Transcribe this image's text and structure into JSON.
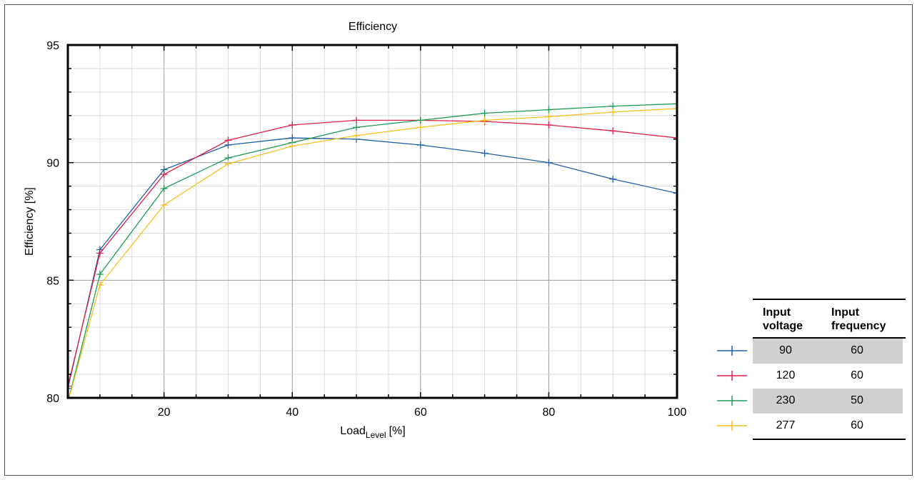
{
  "chart_data": {
    "type": "line",
    "title": "Efficiency",
    "xlabel_main": "Load",
    "xlabel_sub": "Level",
    "xlabel_unit": "[%]",
    "ylabel": "Efficiency [%]",
    "xlim": [
      5,
      100
    ],
    "ylim": [
      80,
      95
    ],
    "x_ticks": [
      20,
      40,
      60,
      80,
      100
    ],
    "y_ticks": [
      80,
      85,
      90,
      95
    ],
    "x": [
      5,
      10,
      20,
      30,
      40,
      50,
      60,
      70,
      80,
      90,
      100
    ],
    "series": [
      {
        "name": "90 / 60",
        "color": "#1f5fa8",
        "values": [
          80.4,
          86.3,
          89.7,
          90.75,
          91.05,
          91.0,
          90.75,
          90.4,
          90.0,
          89.3,
          88.7
        ]
      },
      {
        "name": "120 / 60",
        "color": "#e0204a",
        "values": [
          80.5,
          86.15,
          89.5,
          90.95,
          91.6,
          91.8,
          91.8,
          91.75,
          91.6,
          91.35,
          91.05
        ]
      },
      {
        "name": "230 / 50",
        "color": "#1e9a55",
        "values": [
          79.8,
          85.25,
          88.9,
          90.2,
          90.85,
          91.5,
          91.8,
          92.1,
          92.25,
          92.4,
          92.5
        ]
      },
      {
        "name": "277 / 60",
        "color": "#f5c020",
        "values": [
          79.8,
          84.8,
          88.2,
          89.95,
          90.7,
          91.15,
          91.5,
          91.8,
          91.95,
          92.15,
          92.3
        ]
      }
    ],
    "grid": true
  },
  "legend_table": {
    "header_voltage_1": "Input",
    "header_voltage_2": "voltage",
    "header_freq_1": "Input",
    "header_freq_2": "frequency",
    "rows": [
      {
        "voltage": "90",
        "frequency": "60",
        "color": "#1f5fa8"
      },
      {
        "voltage": "120",
        "frequency": "60",
        "color": "#e0204a"
      },
      {
        "voltage": "230",
        "frequency": "50",
        "color": "#1e9a55"
      },
      {
        "voltage": "277",
        "frequency": "60",
        "color": "#f5c020"
      }
    ]
  }
}
